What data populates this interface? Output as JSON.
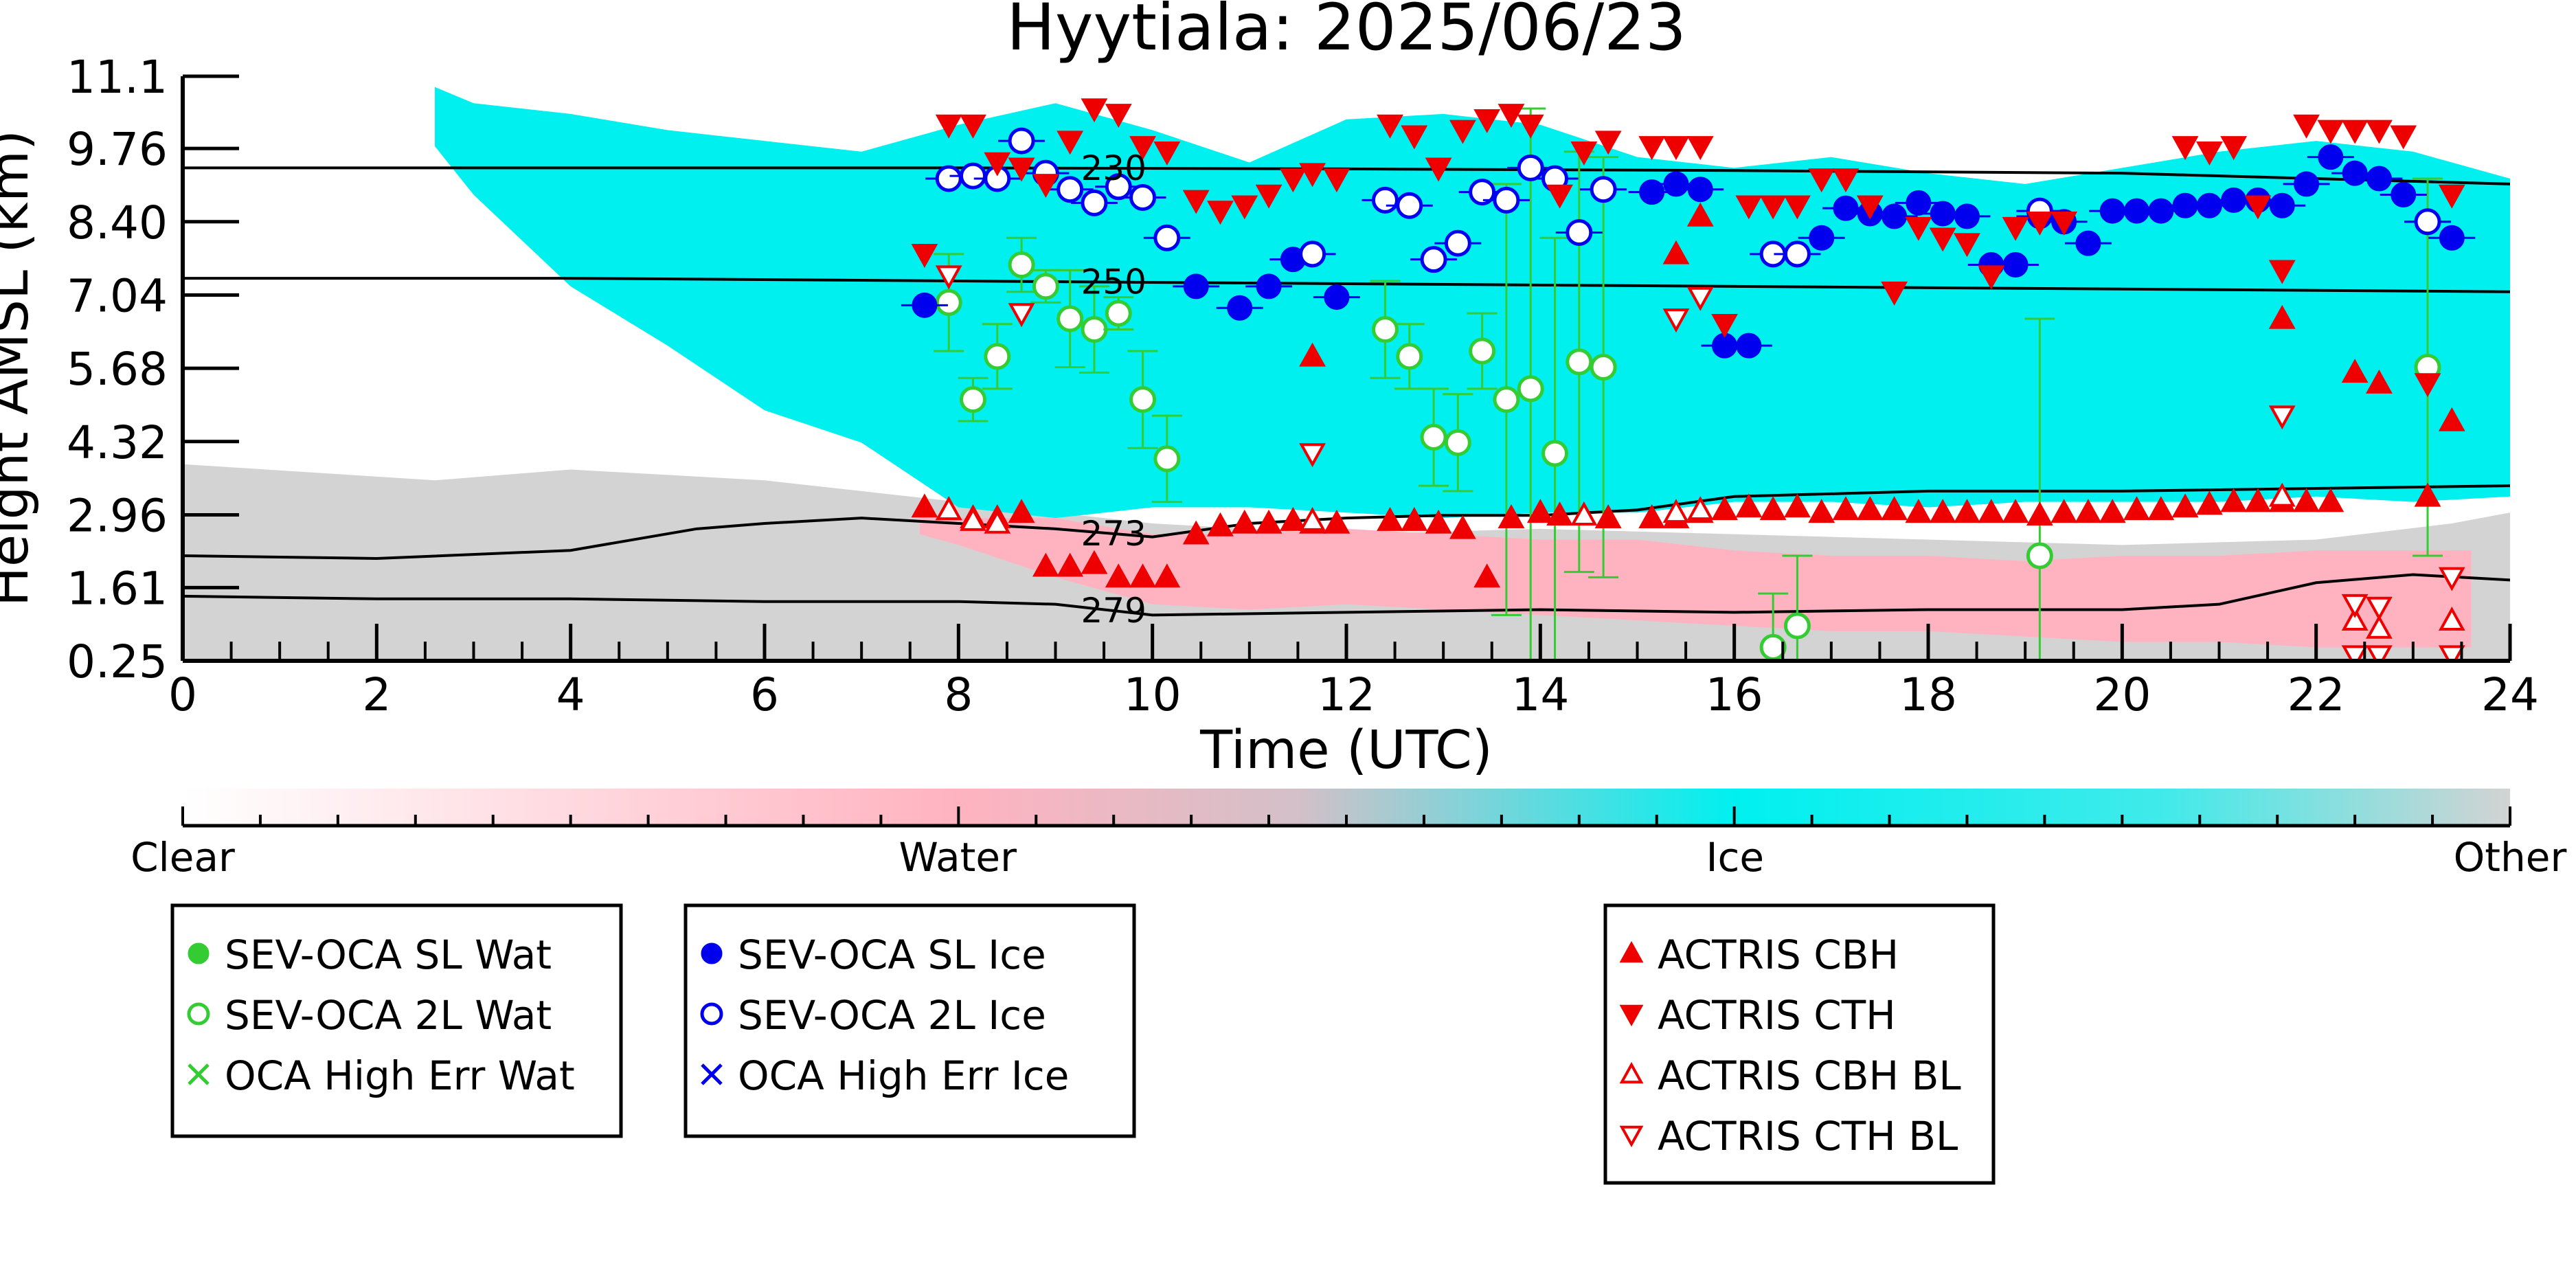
{
  "chart_data": {
    "type": "scatter",
    "title": "Hyytiala: 2025/06/23",
    "xlabel": "Time (UTC)",
    "ylabel": "Height AMSL (km)",
    "xlim": [
      0,
      24
    ],
    "ylim": [
      0.25,
      11.1
    ],
    "xticks": [
      0,
      2,
      4,
      6,
      8,
      10,
      12,
      14,
      16,
      18,
      20,
      22,
      24
    ],
    "xtick_labels": [
      "0",
      "2",
      "4",
      "6",
      "8",
      "10",
      "12",
      "14",
      "16",
      "18",
      "20",
      "22",
      "24"
    ],
    "yticks": [
      0.25,
      1.61,
      2.96,
      4.32,
      5.68,
      7.04,
      8.4,
      9.76,
      11.1
    ],
    "ytick_labels": [
      "0.25",
      "1.61",
      "2.96",
      "4.32",
      "5.68",
      "7.04",
      "8.40",
      "9.76",
      "11.1"
    ],
    "grid": false,
    "colors": {
      "clear": "#ffffff",
      "water": "#ffb3c0",
      "ice": "#00f0f0",
      "other": "#d3d3d3",
      "sev_wat": "#33cc33",
      "sev_ice": "#0000ee",
      "actris": "#ee0000"
    },
    "colorbar": {
      "labels": [
        "Clear",
        "Water",
        "Ice",
        "Other"
      ],
      "positions": [
        0,
        0.333,
        0.667,
        1.0
      ]
    },
    "background_regions": [
      {
        "class": "other",
        "x": [
          0,
          2.6,
          4,
          6,
          8,
          10,
          12,
          14,
          16,
          18,
          20,
          22,
          23.4,
          24
        ],
        "top": [
          3.9,
          3.6,
          3.8,
          3.6,
          3.2,
          2.8,
          2.6,
          2.7,
          2.6,
          2.5,
          2.4,
          2.5,
          2.8,
          3.0
        ],
        "bottom": [
          0.25,
          0.25,
          0.25,
          0.25,
          0.25,
          0.25,
          0.25,
          0.25,
          0.25,
          0.25,
          0.25,
          0.25,
          0.25,
          0.25
        ]
      },
      {
        "class": "ice",
        "x": [
          2.6,
          3,
          4,
          5,
          6,
          7,
          8,
          9,
          10,
          11,
          12,
          13,
          14,
          15,
          16,
          17,
          18,
          19,
          20,
          21,
          22,
          23,
          24
        ],
        "top": [
          10.9,
          10.6,
          10.4,
          10.1,
          9.9,
          9.7,
          10.2,
          10.6,
          10.1,
          9.5,
          10.3,
          10.4,
          10.2,
          9.6,
          9.4,
          9.6,
          9.3,
          9.1,
          9.4,
          9.7,
          9.9,
          9.7,
          9.2
        ],
        "bottom": [
          9.8,
          8.9,
          7.2,
          6.1,
          4.9,
          4.3,
          3.1,
          2.9,
          3.1,
          3.1,
          3.0,
          2.9,
          3.0,
          3.0,
          3.2,
          3.2,
          3.1,
          3.2,
          3.2,
          3.2,
          3.3,
          3.2,
          3.3
        ]
      },
      {
        "class": "water",
        "x": [
          7.6,
          8,
          9,
          10,
          11,
          12,
          13,
          14,
          15,
          16,
          17,
          18,
          19,
          20,
          21,
          22,
          23,
          23.6
        ],
        "top": [
          3.0,
          2.9,
          2.9,
          2.6,
          2.6,
          2.7,
          2.6,
          2.5,
          2.5,
          2.3,
          2.2,
          2.2,
          2.1,
          2.2,
          2.2,
          2.3,
          2.3,
          2.3
        ],
        "bottom": [
          2.6,
          2.4,
          1.8,
          1.3,
          1.2,
          1.3,
          1.2,
          1.1,
          1.0,
          0.9,
          0.8,
          0.8,
          0.7,
          0.6,
          0.6,
          0.5,
          0.5,
          0.5
        ]
      }
    ],
    "contours": [
      {
        "label": "230",
        "label_x": 9.6,
        "x": [
          0,
          4,
          8,
          12,
          16,
          20,
          24
        ],
        "y": [
          9.4,
          9.4,
          9.4,
          9.38,
          9.35,
          9.3,
          9.1
        ]
      },
      {
        "label": "250",
        "label_x": 9.6,
        "x": [
          0,
          4,
          8,
          12,
          16,
          20,
          24
        ],
        "y": [
          7.35,
          7.35,
          7.3,
          7.25,
          7.2,
          7.15,
          7.1
        ]
      },
      {
        "label": "273",
        "label_x": 9.6,
        "x": [
          0,
          2,
          4,
          5.3,
          6,
          7,
          8,
          9,
          10,
          11,
          12,
          13,
          14,
          15,
          16,
          18,
          20,
          22,
          24
        ],
        "y": [
          2.2,
          2.15,
          2.3,
          2.7,
          2.8,
          2.9,
          2.8,
          2.7,
          2.55,
          2.8,
          2.9,
          2.95,
          2.95,
          3.05,
          3.3,
          3.4,
          3.4,
          3.45,
          3.5
        ]
      },
      {
        "label": "279",
        "label_x": 9.6,
        "x": [
          0,
          2,
          4,
          6,
          8,
          9,
          10,
          12,
          14,
          16,
          18,
          20,
          21,
          22,
          23,
          24
        ],
        "y": [
          1.45,
          1.4,
          1.4,
          1.35,
          1.35,
          1.3,
          1.1,
          1.15,
          1.2,
          1.15,
          1.2,
          1.2,
          1.3,
          1.7,
          1.85,
          1.75
        ]
      }
    ],
    "series": [
      {
        "name": "SEV-OCA SL Wat",
        "marker": "circle-filled",
        "color": "#33cc33",
        "x": [],
        "y": []
      },
      {
        "name": "SEV-OCA 2L Wat",
        "marker": "circle-open",
        "color": "#33cc33",
        "x": [
          7.9,
          8.15,
          8.4,
          8.65,
          8.9,
          9.15,
          9.4,
          9.65,
          9.9,
          10.15,
          12.4,
          12.65,
          12.9,
          13.15,
          13.4,
          13.65,
          13.9,
          14.15,
          14.4,
          14.65,
          16.4,
          16.65,
          19.15,
          23.15
        ],
        "y": [
          6.9,
          5.1,
          5.9,
          7.6,
          7.2,
          6.6,
          6.4,
          6.7,
          5.1,
          4.0,
          6.4,
          5.9,
          4.4,
          4.3,
          6.0,
          5.1,
          5.3,
          4.1,
          5.8,
          5.7,
          0.5,
          0.9,
          2.2,
          5.7
        ],
        "err": [
          0.9,
          0.4,
          0.6,
          0.5,
          0.3,
          0.9,
          0.8,
          0.3,
          0.9,
          0.8,
          0.9,
          0.6,
          0.9,
          0.9,
          0.7,
          4.0,
          5.2,
          4.0,
          3.9,
          3.9,
          1.0,
          1.3,
          4.4,
          3.5
        ]
      },
      {
        "name": "OCA High Err Wat",
        "marker": "x",
        "color": "#33cc33",
        "x": [],
        "y": []
      },
      {
        "name": "SEV-OCA SL Ice",
        "marker": "circle-filled",
        "color": "#0000ee",
        "x": [
          7.65,
          10.45,
          10.9,
          11.2,
          11.45,
          11.9,
          15.15,
          15.4,
          15.65,
          15.9,
          16.15,
          16.9,
          17.15,
          17.4,
          17.65,
          17.9,
          18.15,
          18.4,
          18.65,
          18.9,
          19.15,
          19.4,
          19.65,
          19.9,
          20.15,
          20.4,
          20.65,
          20.9,
          21.15,
          21.4,
          21.65,
          21.9,
          22.15,
          22.4,
          22.65,
          22.9,
          23.15,
          23.4
        ],
        "y": [
          6.85,
          7.2,
          6.8,
          7.2,
          7.7,
          7.0,
          8.95,
          9.1,
          9.0,
          6.1,
          6.1,
          8.1,
          8.65,
          8.55,
          8.5,
          8.75,
          8.55,
          8.5,
          7.6,
          7.6,
          8.5,
          8.4,
          8.0,
          8.6,
          8.6,
          8.6,
          8.7,
          8.7,
          8.8,
          8.8,
          8.7,
          9.1,
          9.6,
          9.3,
          9.2,
          8.9,
          8.4,
          8.1
        ]
      },
      {
        "name": "SEV-OCA 2L Ice",
        "marker": "circle-open",
        "color": "#0000ee",
        "x": [
          7.9,
          8.15,
          8.4,
          8.65,
          8.9,
          9.15,
          9.4,
          9.65,
          9.9,
          10.15,
          11.65,
          12.4,
          12.65,
          12.9,
          13.15,
          13.4,
          13.65,
          13.9,
          14.15,
          14.4,
          14.65,
          16.4,
          16.65,
          19.15,
          23.15
        ],
        "y": [
          9.2,
          9.25,
          9.2,
          9.9,
          9.3,
          9.0,
          8.75,
          9.05,
          8.85,
          8.1,
          7.8,
          8.8,
          8.7,
          7.7,
          8.0,
          8.95,
          8.8,
          9.4,
          9.2,
          8.2,
          9.0,
          7.8,
          7.8,
          8.6,
          8.4
        ]
      },
      {
        "name": "OCA High Err Ice",
        "marker": "x",
        "color": "#0000ee",
        "x": [],
        "y": []
      },
      {
        "name": "ACTRIS CBH",
        "marker": "triangle-up-filled",
        "color": "#ee0000",
        "x": [
          7.65,
          7.9,
          8.15,
          8.4,
          8.65,
          8.9,
          9.15,
          9.4,
          9.65,
          9.9,
          10.15,
          10.45,
          10.7,
          10.95,
          11.2,
          11.45,
          11.65,
          11.9,
          12.45,
          12.7,
          12.95,
          13.2,
          13.45,
          13.7,
          14.0,
          14.2,
          14.45,
          14.7,
          15.15,
          15.4,
          15.65,
          15.9,
          16.15,
          16.4,
          16.65,
          16.9,
          17.15,
          17.4,
          17.65,
          17.9,
          18.15,
          18.4,
          18.65,
          18.9,
          19.15,
          19.4,
          19.65,
          19.9,
          20.15,
          20.4,
          20.65,
          20.9,
          21.15,
          21.4,
          21.65,
          21.9,
          22.15,
          22.4,
          22.65,
          23.15,
          23.4,
          11.65,
          15.4,
          15.65,
          21.65
        ],
        "y": [
          3.1,
          3.05,
          2.9,
          2.9,
          3.0,
          2.0,
          2.0,
          2.05,
          1.8,
          1.8,
          1.8,
          2.6,
          2.75,
          2.8,
          2.8,
          2.85,
          2.8,
          2.8,
          2.85,
          2.85,
          2.8,
          2.7,
          1.8,
          2.9,
          3.0,
          2.95,
          2.95,
          2.9,
          2.9,
          2.9,
          3.0,
          3.05,
          3.1,
          3.05,
          3.1,
          3.0,
          3.05,
          3.05,
          3.05,
          3.0,
          3.0,
          3.0,
          3.0,
          3.0,
          2.95,
          3.0,
          3.0,
          3.0,
          3.05,
          3.05,
          3.1,
          3.15,
          3.2,
          3.2,
          3.2,
          3.2,
          3.2,
          5.6,
          5.4,
          3.3,
          4.7,
          5.9,
          7.8,
          8.5,
          6.6
        ],
        "filled": true
      },
      {
        "name": "ACTRIS CTH",
        "marker": "triangle-down-filled",
        "color": "#ee0000",
        "x": [
          7.65,
          7.9,
          8.15,
          8.4,
          8.65,
          8.9,
          9.15,
          9.4,
          9.65,
          9.9,
          10.15,
          10.45,
          10.7,
          10.95,
          11.2,
          11.45,
          11.65,
          11.9,
          12.45,
          12.7,
          12.95,
          13.2,
          13.45,
          13.7,
          13.9,
          14.2,
          14.45,
          14.7,
          15.15,
          15.4,
          15.65,
          15.9,
          16.15,
          16.4,
          16.65,
          16.9,
          17.15,
          17.4,
          17.65,
          17.9,
          18.15,
          18.4,
          18.65,
          18.9,
          19.15,
          19.4,
          20.65,
          20.9,
          21.15,
          21.4,
          21.65,
          21.9,
          22.15,
          22.4,
          22.65,
          22.9,
          23.15,
          23.4
        ],
        "y": [
          7.8,
          10.2,
          10.2,
          9.5,
          9.4,
          9.1,
          9.9,
          10.5,
          10.4,
          9.8,
          9.7,
          8.8,
          8.6,
          8.7,
          8.9,
          9.2,
          9.3,
          9.2,
          10.2,
          10.0,
          9.4,
          10.1,
          10.3,
          10.4,
          10.2,
          8.9,
          9.7,
          9.9,
          9.8,
          9.8,
          9.8,
          6.5,
          8.7,
          8.7,
          8.7,
          9.2,
          9.2,
          8.7,
          7.1,
          8.3,
          8.1,
          8.0,
          7.4,
          8.3,
          8.4,
          8.4,
          9.8,
          9.7,
          9.8,
          8.7,
          7.5,
          10.2,
          10.1,
          10.1,
          10.1,
          10.0,
          5.4,
          8.9
        ],
        "filled": true
      },
      {
        "name": "ACTRIS CBH BL",
        "marker": "triangle-up-open",
        "color": "#ee0000",
        "x": [
          7.9,
          8.15,
          8.4,
          11.65,
          14.45,
          15.4,
          15.65,
          21.65,
          22.4,
          22.65,
          23.4
        ],
        "y": [
          3.05,
          2.85,
          2.8,
          2.85,
          2.95,
          3.0,
          3.05,
          3.3,
          1.0,
          0.85,
          1.0
        ],
        "filled": false
      },
      {
        "name": "ACTRIS CTH BL",
        "marker": "triangle-down-open",
        "color": "#ee0000",
        "x": [
          7.9,
          8.65,
          11.65,
          15.4,
          15.65,
          21.65,
          22.4,
          22.65,
          22.4,
          22.65,
          23.4,
          23.4
        ],
        "y": [
          7.4,
          6.7,
          4.1,
          6.6,
          7.0,
          4.8,
          1.3,
          1.25,
          0.35,
          0.35,
          1.8,
          0.35
        ],
        "filled": false
      }
    ],
    "legend_groups": [
      [
        "SEV-OCA SL Wat",
        "SEV-OCA 2L Wat",
        "OCA High Err Wat"
      ],
      [
        "SEV-OCA SL Ice",
        "SEV-OCA 2L Ice",
        "OCA High Err Ice"
      ],
      [
        "ACTRIS CBH",
        "ACTRIS CTH",
        "ACTRIS CBH BL",
        "ACTRIS CTH BL"
      ]
    ]
  }
}
